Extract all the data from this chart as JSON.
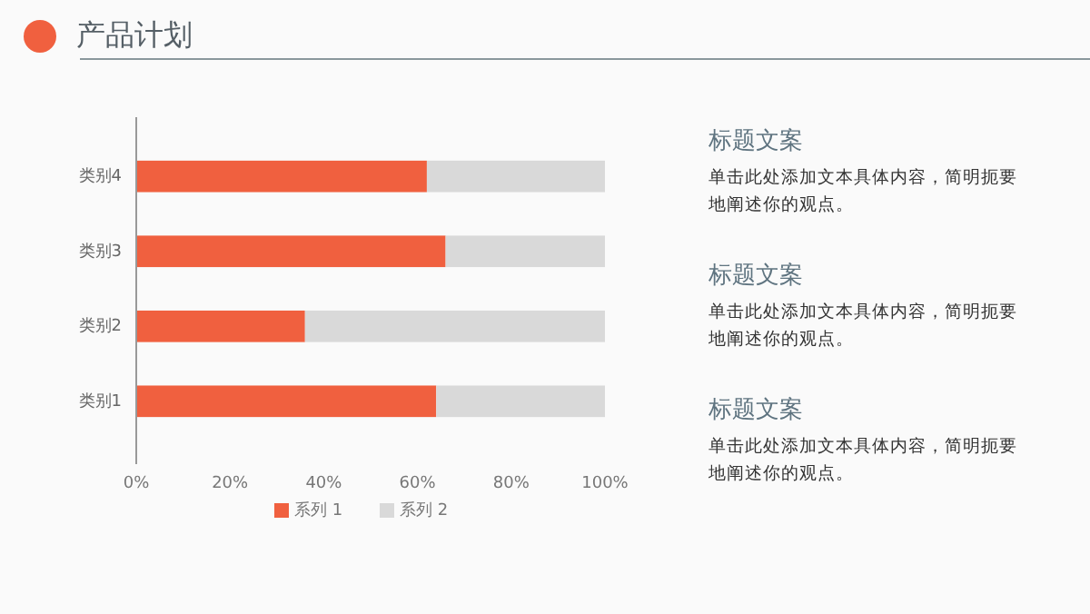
{
  "chart_data": {
    "type": "bar",
    "orientation": "horizontal",
    "stacked": true,
    "title": "产品计划",
    "categories": [
      "类别4",
      "类别3",
      "类别2",
      "类别1"
    ],
    "series": [
      {
        "name": "系列 1",
        "color": "#f0603f",
        "values": [
          62,
          66,
          36,
          64
        ]
      },
      {
        "name": "系列 2",
        "color": "#d9d9d9",
        "values": [
          38,
          34,
          64,
          36
        ]
      }
    ],
    "xlim": [
      0,
      100
    ],
    "xticks": [
      {
        "value": 0,
        "label": "0%"
      },
      {
        "value": 20,
        "label": "20%"
      },
      {
        "value": 40,
        "label": "40%"
      },
      {
        "value": 60,
        "label": "60%"
      },
      {
        "value": 80,
        "label": "80%"
      },
      {
        "value": 100,
        "label": "100%"
      }
    ],
    "legend": "bottom",
    "annotations": [
      "标题文案",
      "单击此处添加文本具体内容，简明扼要地阐述你的观点。",
      "标题文案",
      "单击此处添加文本具体内容，简明扼要地阐述你的观点。",
      "标题文案",
      "单击此处添加文本具体内容，简明扼要地阐述你的观点。"
    ]
  }
}
